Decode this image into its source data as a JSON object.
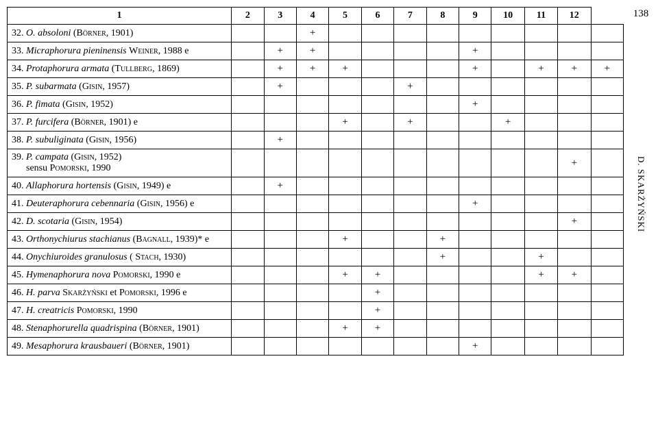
{
  "page_number": "138",
  "side_label": "D. SKARŻYŃSKI",
  "columns": [
    "1",
    "2",
    "3",
    "4",
    "5",
    "6",
    "7",
    "8",
    "9",
    "10",
    "11",
    "12"
  ],
  "rows": [
    {
      "label": "32. <i>O. absoloni</i> (<span class='small-caps'>Börner</span>, 1901)",
      "marks": [
        "",
        "",
        "+",
        "",
        "",
        "",
        "",
        "",
        "",
        "",
        "",
        ""
      ]
    },
    {
      "label": "33. <i>Micraphorura pieninensis</i> <span class='small-caps'>Weiner</span>, 1988 e",
      "marks": [
        "",
        "+",
        "+",
        "",
        "",
        "",
        "",
        "+",
        "",
        "",
        "",
        ""
      ]
    },
    {
      "label": "34. <i>Protaphorura armata</i> (<span class='small-caps'>Tullberg</span>, 1869)",
      "marks": [
        "",
        "+",
        "+",
        "+",
        "",
        "",
        "",
        "+",
        "",
        "+",
        "+",
        "+"
      ]
    },
    {
      "label": "35. <i>P. subarmata</i> (<span class='small-caps'>Gisin</span>, 1957)",
      "marks": [
        "",
        "+",
        "",
        "",
        "",
        "+",
        "",
        "",
        "",
        "",
        "",
        ""
      ]
    },
    {
      "label": "36. <i>P. fimata</i> (<span class='small-caps'>Gisin</span>, 1952)",
      "marks": [
        "",
        "",
        "",
        "",
        "",
        "",
        "",
        "+",
        "",
        "",
        "",
        ""
      ]
    },
    {
      "label": "37. <i>P. furcifera</i> (<span class='small-caps'>Börner</span>, 1901) e",
      "marks": [
        "",
        "",
        "",
        "+",
        "",
        "+",
        "",
        "",
        "+",
        "",
        "",
        ""
      ]
    },
    {
      "label": "38. <i>P. subuliginata</i> (<span class='small-caps'>Gisin</span>, 1956)",
      "marks": [
        "",
        "+",
        "",
        "",
        "",
        "",
        "",
        "",
        "",
        "",
        "",
        ""
      ]
    },
    {
      "label": "39. <i>P. campata</i> (<span class='small-caps'>Gisin</span>, 1952)<br>&nbsp;&nbsp;&nbsp;&nbsp;&nbsp;&nbsp;sensu <span class='small-caps'>Pomorski</span>, 1990",
      "marks": [
        "",
        "",
        "",
        "",
        "",
        "",
        "",
        "",
        "",
        "",
        "+",
        ""
      ]
    },
    {
      "label": "40. <i>Allaphorura hortensis</i> (<span class='small-caps'>Gisin</span>, 1949) e",
      "marks": [
        "",
        "+",
        "",
        "",
        "",
        "",
        "",
        "",
        "",
        "",
        "",
        ""
      ]
    },
    {
      "label": "41. <i>Deuteraphorura cebennaria</i> (<span class='small-caps'>Gisin</span>, 1956) e",
      "marks": [
        "",
        "",
        "",
        "",
        "",
        "",
        "",
        "+",
        "",
        "",
        "",
        ""
      ]
    },
    {
      "label": "42. <i>D. scotaria</i> (<span class='small-caps'>Gisin</span>, 1954)",
      "marks": [
        "",
        "",
        "",
        "",
        "",
        "",
        "",
        "",
        "",
        "",
        "+",
        ""
      ]
    },
    {
      "label": "43. <i>Orthonychiurus stachianus</i> (<span class='small-caps'>Bagnall</span>, 1939)* e",
      "marks": [
        "",
        "",
        "",
        "+",
        "",
        "",
        "+",
        "",
        "",
        "",
        "",
        ""
      ]
    },
    {
      "label": "44. <i>Onychiuroides granulosus</i> ( <span class='small-caps'>Stach</span>, 1930)",
      "marks": [
        "",
        "",
        "",
        "",
        "",
        "",
        "+",
        "",
        "",
        "+",
        "",
        ""
      ]
    },
    {
      "label": "45. <i>Hymenaphorura nova</i> <span class='small-caps'>Pomorski</span>, 1990 e",
      "marks": [
        "",
        "",
        "",
        "+",
        "+",
        "",
        "",
        "",
        "",
        "+",
        "+",
        ""
      ]
    },
    {
      "label": "46. <i>H. parva</i> <span class='small-caps'>Skarżyński</span> et <span class='small-caps'>Pomorski</span>, 1996 e",
      "marks": [
        "",
        "",
        "",
        "",
        "+",
        "",
        "",
        "",
        "",
        "",
        "",
        ""
      ]
    },
    {
      "label": "47. <i>H. creatricis</i> <span class='small-caps'>Pomorski</span>, 1990",
      "marks": [
        "",
        "",
        "",
        "",
        "+",
        "",
        "",
        "",
        "",
        "",
        "",
        ""
      ]
    },
    {
      "label": "48. <i>Stenaphorurella quadrispina</i> (<span class='small-caps'>Börner</span>, 1901)",
      "marks": [
        "",
        "",
        "",
        "+",
        "+",
        "",
        "",
        "",
        "",
        "",
        "",
        ""
      ]
    },
    {
      "label": "49. <i>Mesaphorura krausbaueri</i> (<span class='small-caps'>Börner</span>, 1901)",
      "marks": [
        "",
        "",
        "",
        "",
        "",
        "",
        "",
        "+",
        "",
        "",
        "",
        ""
      ]
    }
  ]
}
